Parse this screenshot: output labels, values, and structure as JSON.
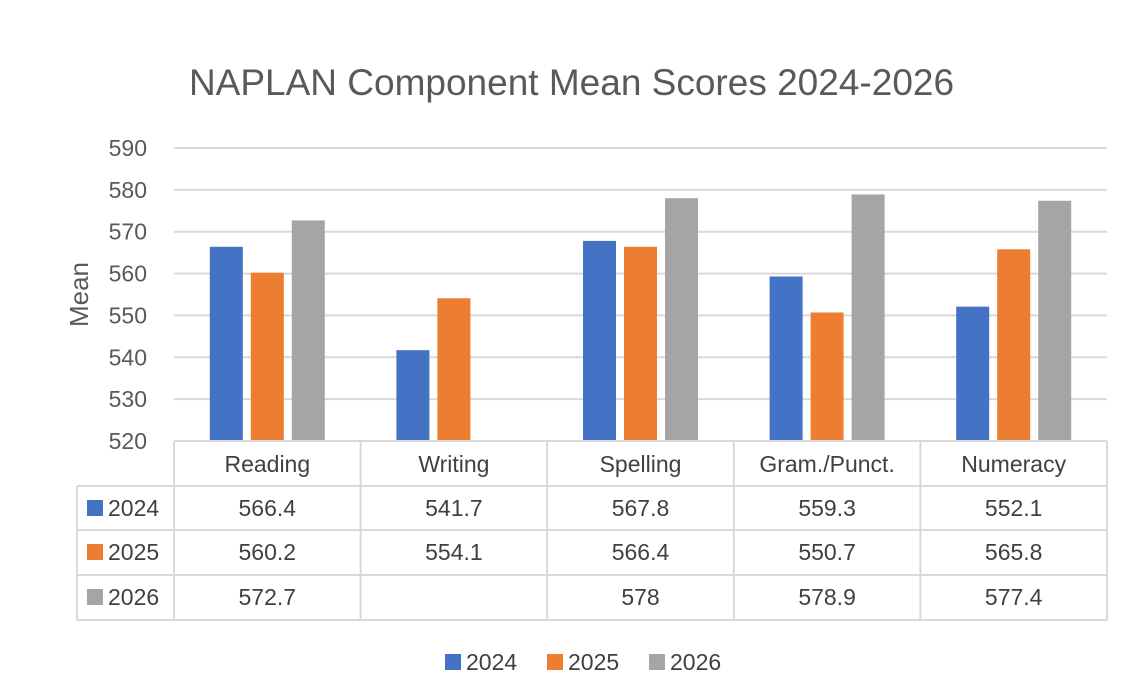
{
  "chart_data": {
    "type": "bar",
    "title": "NAPLAN Component Mean Scores 2024-2026",
    "xlabel": "",
    "ylabel": "Mean",
    "ylim": [
      520,
      590
    ],
    "yticks": [
      520,
      530,
      540,
      550,
      560,
      570,
      580,
      590
    ],
    "grid": true,
    "legend_position": "bottom",
    "data_table": true,
    "categories": [
      "Reading",
      "Writing",
      "Spelling",
      "Gram./Punct.",
      "Numeracy"
    ],
    "series": [
      {
        "name": "2024",
        "color": "#4472C4",
        "values": [
          566.4,
          541.7,
          567.8,
          559.3,
          552.1
        ],
        "labels": [
          "566.4",
          "541.7",
          "567.8",
          "559.3",
          "552.1"
        ]
      },
      {
        "name": "2025",
        "color": "#ED7D31",
        "values": [
          560.2,
          554.1,
          566.4,
          550.7,
          565.8
        ],
        "labels": [
          "560.2",
          "554.1",
          "566.4",
          "550.7",
          "565.8"
        ]
      },
      {
        "name": "2026",
        "color": "#A5A5A5",
        "values": [
          572.7,
          null,
          578,
          578.9,
          577.4
        ],
        "labels": [
          "572.7",
          "",
          "578",
          "578.9",
          "577.4"
        ]
      }
    ]
  }
}
